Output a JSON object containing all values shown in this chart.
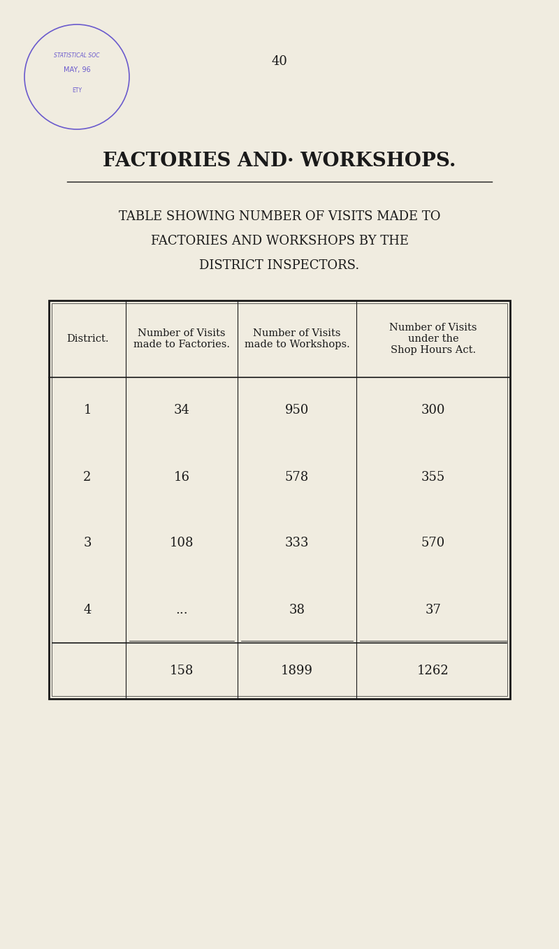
{
  "page_number": "40",
  "main_title": "FACTORIES AND· WORKSHOPS.",
  "subtitle_line1": "TABLE SHOWING NUMBER OF VISITS MADE TO",
  "subtitle_line2": "FACTORIES AND WORKSHOPS BY THE",
  "subtitle_line3": "DISTRICT INSPECTORS.",
  "col_headers": [
    "District.",
    "Number of Visits\nmade to Factories.",
    "Number of Visits\nmade to Workshops.",
    "Number of Visits\nunder the\nShop Hours Act."
  ],
  "rows": [
    [
      "1",
      "34",
      "950",
      "300"
    ],
    [
      "2",
      "16",
      "578",
      "355"
    ],
    [
      "3",
      "108",
      "333",
      "570"
    ],
    [
      "4",
      "...",
      "38",
      "37"
    ]
  ],
  "totals": [
    "",
    "158",
    "1899",
    "1262"
  ],
  "bg_color": "#f0ece0",
  "text_color": "#1a1a1a",
  "stamp_color": "#6a5acd"
}
